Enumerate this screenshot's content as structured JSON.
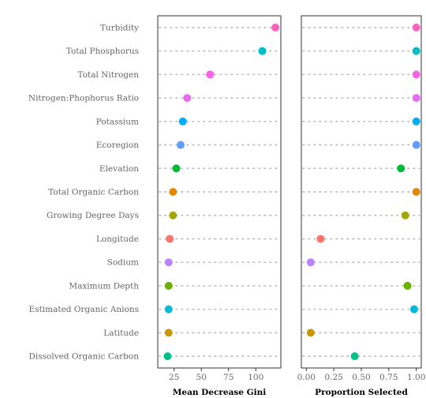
{
  "chart_data": [
    {
      "type": "scatter",
      "xlabel": "Mean Decrease Gini",
      "xlim": [
        10,
        123
      ],
      "xticks": [
        "25",
        "50",
        "75",
        "100"
      ],
      "categories": [
        "Turbidity",
        "Total Phosphorus",
        "Total Nitrogen",
        "Nitrogen:Phophorus Ratio",
        "Potassium",
        "Ecoregion",
        "Elevation",
        "Total Organic Carbon",
        "Growing Degree Days",
        "Longitude",
        "Sodium",
        "Maximum Depth",
        "Estimated Organic Anions",
        "Latitude",
        "Dissolved Organic Carbon"
      ],
      "values": [
        118,
        106,
        58,
        37,
        33,
        31,
        27,
        24,
        24,
        21,
        20,
        20,
        20,
        20,
        19
      ],
      "grid": false
    },
    {
      "type": "scatter",
      "xlabel": "Proportion Selected",
      "xlim": [
        -0.045,
        1.045
      ],
      "xticks": [
        "0.00",
        "0.25",
        "0.50",
        "0.75",
        "1.00"
      ],
      "categories": [
        "Turbidity",
        "Total Phosphorus",
        "Total Nitrogen",
        "Nitrogen:Phophorus Ratio",
        "Potassium",
        "Ecoregion",
        "Elevation",
        "Total Organic Carbon",
        "Growing Degree Days",
        "Longitude",
        "Sodium",
        "Maximum Depth",
        "Estimated Organic Anions",
        "Latitude",
        "Dissolved Organic Carbon"
      ],
      "values": [
        1.0,
        1.0,
        1.0,
        1.0,
        1.0,
        1.0,
        0.86,
        1.0,
        0.9,
        0.13,
        0.04,
        0.92,
        0.98,
        0.04,
        0.44
      ],
      "grid": false
    }
  ],
  "colors": [
    "#F8766D",
    "#D39200",
    "#93AA00",
    "#00BA38",
    "#00C19F",
    "#00B9E3",
    "#619CFF",
    "#DB72FB",
    "#FF61C3"
  ],
  "point_colors": [
    "#FF61C3",
    "#00BFC4",
    "#F564E3",
    "#E76BF3",
    "#00B0F6",
    "#619CFF",
    "#00BA38",
    "#E58700",
    "#A3A500",
    "#F8766D",
    "#B983FF",
    "#6BB100",
    "#00BCD8",
    "#C99800",
    "#00C08B"
  ]
}
